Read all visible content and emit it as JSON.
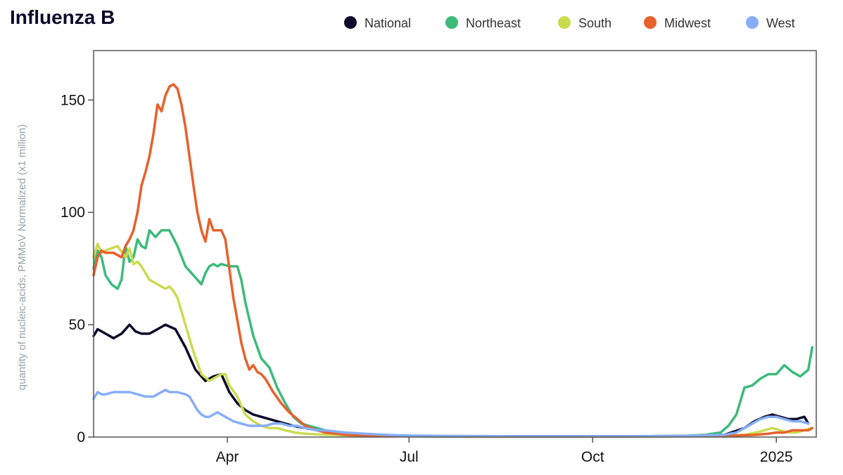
{
  "chart_data": {
    "type": "line",
    "title": "Influenza B",
    "xlabel": "",
    "ylabel": "quantity of nucleic-acids, PMMoV Normalized (x1 million)",
    "ylim": [
      0,
      172
    ],
    "y_ticks": [
      0,
      50,
      100,
      150
    ],
    "x_ticks": [
      {
        "label": "Apr",
        "day": 91
      },
      {
        "label": "Jul",
        "day": 182
      },
      {
        "label": "Oct",
        "day": 274
      },
      {
        "label": "2025",
        "day": 366
      }
    ],
    "xlim": [
      24,
      386
    ],
    "x_unit": "day of year 2024",
    "legend_position": "top-right",
    "series": [
      {
        "name": "National",
        "color": "#0d0a2b",
        "x": [
          24,
          26,
          30,
          34,
          38,
          42,
          45,
          48,
          52,
          56,
          60,
          65,
          70,
          75,
          80,
          84,
          88,
          92,
          96,
          100,
          104,
          108,
          112,
          116,
          120,
          124,
          130,
          136,
          140,
          145,
          150,
          160,
          170,
          180,
          200,
          230,
          260,
          290,
          320,
          340,
          350,
          355,
          360,
          364,
          368,
          372,
          376,
          380,
          382
        ],
        "y": [
          45,
          48,
          46,
          44,
          46,
          50,
          47,
          46,
          46,
          48,
          50,
          48,
          40,
          30,
          25,
          27,
          28,
          20,
          15,
          12,
          10,
          9,
          8,
          7,
          6,
          5,
          4,
          3,
          2.5,
          2,
          1.5,
          1,
          0.7,
          0.5,
          0.4,
          0.3,
          0.3,
          0.3,
          0.5,
          1,
          4,
          7,
          9,
          10,
          9,
          8,
          8,
          9,
          6
        ]
      },
      {
        "name": "Northeast",
        "color": "#3dba7a",
        "x": [
          24,
          26,
          28,
          30,
          33,
          36,
          38,
          40,
          42,
          44,
          46,
          48,
          50,
          52,
          55,
          58,
          62,
          66,
          70,
          74,
          78,
          80,
          82,
          84,
          86,
          88,
          92,
          96,
          98,
          100,
          104,
          108,
          112,
          116,
          120,
          124,
          128,
          132,
          136,
          140,
          145,
          150,
          155,
          160,
          170,
          180,
          200,
          230,
          260,
          290,
          320,
          330,
          338,
          342,
          346,
          350,
          354,
          358,
          362,
          366,
          370,
          374,
          378,
          382,
          384
        ],
        "y": [
          75,
          83,
          80,
          72,
          68,
          66,
          70,
          85,
          78,
          80,
          88,
          85,
          84,
          92,
          89,
          92,
          92,
          85,
          76,
          72,
          68,
          73,
          76,
          77,
          76,
          77,
          76,
          76,
          70,
          60,
          45,
          35,
          31,
          22,
          15,
          9,
          6,
          5,
          4,
          3,
          2,
          1.5,
          1,
          0.8,
          0.5,
          0.4,
          0.3,
          0.3,
          0.3,
          0.3,
          0.5,
          1,
          2,
          5,
          10,
          22,
          23,
          26,
          28,
          28,
          32,
          29,
          27,
          30,
          40
        ]
      },
      {
        "name": "South",
        "color": "#cbdb50",
        "x": [
          24,
          26,
          28,
          30,
          33,
          36,
          40,
          42,
          44,
          46,
          48,
          52,
          56,
          60,
          62,
          64,
          66,
          70,
          74,
          78,
          82,
          86,
          88,
          90,
          92,
          96,
          100,
          104,
          108,
          112,
          116,
          120,
          125,
          130,
          140,
          150,
          170,
          200,
          230,
          260,
          290,
          320,
          340,
          350,
          356,
          360,
          364,
          368,
          372,
          376,
          380,
          384
        ],
        "y": [
          80,
          86,
          82,
          83,
          84,
          85,
          80,
          84,
          77,
          78,
          76,
          70,
          68,
          66,
          67,
          65,
          62,
          50,
          38,
          28,
          25,
          27,
          28,
          28,
          23,
          18,
          10,
          7,
          5,
          4,
          4,
          3,
          2,
          1.5,
          1,
          0.8,
          0.5,
          0.4,
          0.3,
          0.3,
          0.3,
          0.4,
          0.6,
          1,
          2,
          3,
          4,
          3,
          2,
          2,
          3,
          4
        ]
      },
      {
        "name": "Midwest",
        "color": "#e8602c",
        "x": [
          24,
          26,
          28,
          30,
          34,
          38,
          40,
          42,
          44,
          46,
          48,
          50,
          52,
          54,
          56,
          58,
          60,
          62,
          64,
          66,
          68,
          70,
          72,
          74,
          76,
          78,
          80,
          82,
          84,
          86,
          88,
          90,
          92,
          94,
          96,
          98,
          100,
          102,
          104,
          106,
          108,
          110,
          114,
          118,
          122,
          126,
          130,
          136,
          140,
          146,
          150,
          160,
          170,
          180,
          200,
          230,
          260,
          290,
          320,
          340,
          350,
          356,
          362,
          366,
          370,
          374,
          378,
          382,
          384
        ],
        "y": [
          72,
          80,
          83,
          82,
          82,
          80,
          85,
          88,
          92,
          100,
          112,
          118,
          125,
          135,
          148,
          145,
          152,
          156,
          157,
          155,
          148,
          138,
          125,
          112,
          100,
          92,
          87,
          97,
          92,
          92,
          92,
          88,
          75,
          62,
          52,
          42,
          35,
          30,
          32,
          29,
          28,
          26,
          20,
          15,
          11,
          8,
          5,
          3,
          2,
          1.5,
          1,
          0.7,
          0.5,
          0.4,
          0.3,
          0.3,
          0.3,
          0.3,
          0.4,
          0.5,
          0.8,
          1,
          1.5,
          2,
          2,
          3,
          3,
          3,
          4
        ]
      },
      {
        "name": "West",
        "color": "#86aef8",
        "x": [
          24,
          26,
          28,
          30,
          34,
          38,
          42,
          46,
          50,
          54,
          56,
          58,
          60,
          62,
          66,
          70,
          72,
          74,
          76,
          78,
          80,
          82,
          84,
          86,
          90,
          94,
          98,
          102,
          106,
          110,
          114,
          118,
          122,
          126,
          130,
          136,
          140,
          150,
          160,
          170,
          180,
          200,
          230,
          260,
          290,
          320,
          330,
          340,
          346,
          350,
          354,
          358,
          362,
          366,
          370,
          374,
          378,
          382
        ],
        "y": [
          17,
          20,
          19,
          19,
          20,
          20,
          20,
          19,
          18,
          18,
          19,
          20,
          21,
          20,
          20,
          19,
          18,
          15,
          12,
          10,
          9,
          9,
          10,
          11,
          9,
          7,
          6,
          5,
          5,
          5,
          6,
          6,
          5,
          5,
          4,
          3,
          3,
          2,
          1.5,
          1,
          0.7,
          0.5,
          0.4,
          0.4,
          0.4,
          0.5,
          0.8,
          1,
          2,
          4,
          6,
          8,
          9,
          9,
          8,
          7,
          7,
          6
        ]
      }
    ]
  }
}
